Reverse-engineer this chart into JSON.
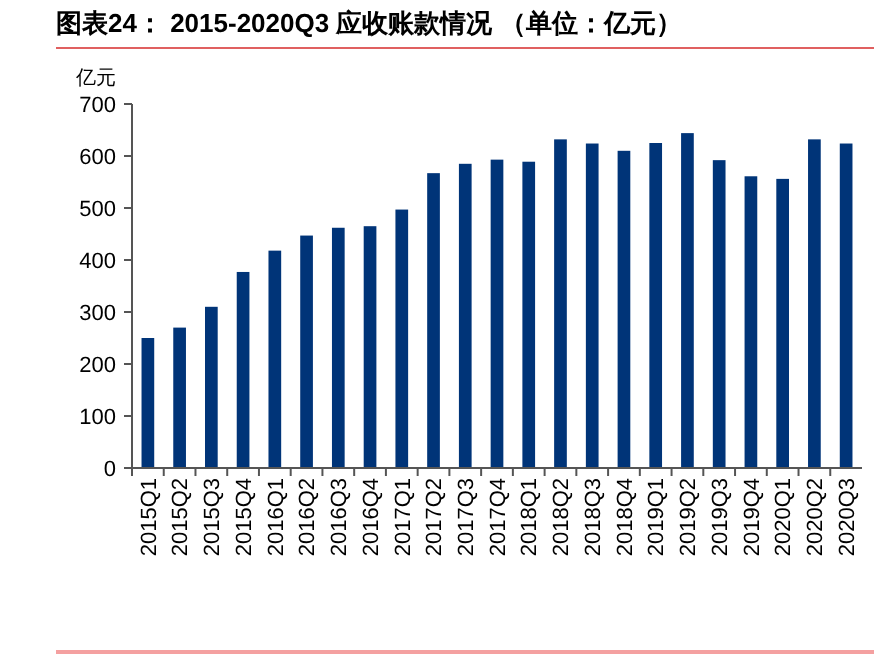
{
  "chart_data": {
    "type": "bar",
    "title": "图表24：  2015-2020Q3 应收账款情况 （单位：亿元）",
    "ylabel": "亿元",
    "categories": [
      "2015Q1",
      "2015Q2",
      "2015Q3",
      "2015Q4",
      "2016Q1",
      "2016Q2",
      "2016Q3",
      "2016Q4",
      "2017Q1",
      "2017Q2",
      "2017Q3",
      "2017Q4",
      "2018Q1",
      "2018Q2",
      "2018Q3",
      "2018Q4",
      "2019Q1",
      "2019Q2",
      "2019Q3",
      "2019Q4",
      "2020Q1",
      "2020Q2",
      "2020Q3"
    ],
    "values": [
      250,
      270,
      310,
      377,
      418,
      447,
      462,
      465,
      497,
      567,
      585,
      593,
      589,
      632,
      624,
      610,
      625,
      644,
      592,
      561,
      556,
      632,
      624
    ],
    "color": "#003478",
    "ylim": [
      0,
      700
    ],
    "yticks": [
      0,
      100,
      200,
      300,
      400,
      500,
      600,
      700
    ],
    "grid": false
  }
}
